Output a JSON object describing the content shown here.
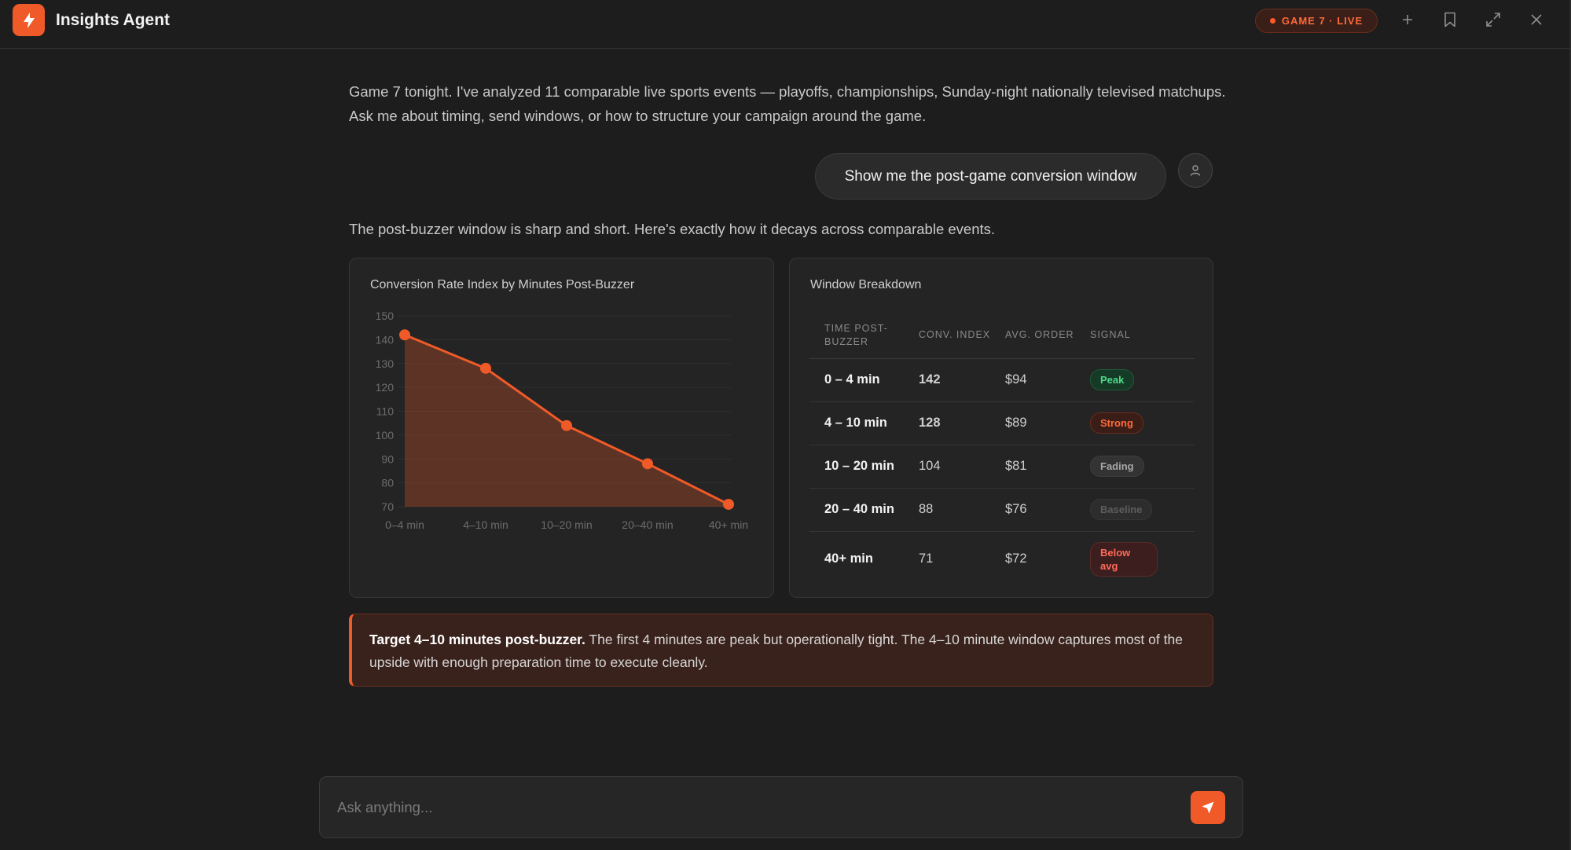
{
  "app": {
    "title": "Insights Agent",
    "logo_icon": "lightning-bolt-icon"
  },
  "header": {
    "live_badge": "GAME 7 · LIVE",
    "actions": [
      "plus-icon",
      "bookmark-icon",
      "expand-icon",
      "close-icon"
    ]
  },
  "messages": {
    "intro": "Game 7 tonight. I've analyzed 11 comparable live sports events — playoffs, championships, Sunday-night nationally televised matchups. Ask me about timing, send windows, or how to structure your campaign around the game.",
    "user_prompt": "Show me the post-game conversion window",
    "reply": "The post-buzzer window is sharp and short. Here's exactly how it decays across comparable events."
  },
  "chart_card": {
    "title": "Conversion Rate Index by Minutes Post-Buzzer"
  },
  "chart_data": {
    "type": "area",
    "title": "Conversion Rate Index by Minutes Post-Buzzer",
    "categories": [
      "0–4 min",
      "4–10 min",
      "10–20 min",
      "20–40 min",
      "40+ min"
    ],
    "values": [
      142,
      128,
      104,
      88,
      71
    ],
    "ylim": [
      70,
      150
    ],
    "yticks": [
      70,
      80,
      90,
      100,
      110,
      120,
      130,
      140,
      150
    ],
    "grid": true,
    "color": "#f05a28"
  },
  "table_card": {
    "title": "Window Breakdown",
    "headers": [
      "TIME POST-BUZZER",
      "CONV. INDEX",
      "AVG. ORDER",
      "SIGNAL"
    ],
    "rows": [
      {
        "time": "0 – 4 min",
        "index": "142",
        "order": "$94",
        "signal": "Peak"
      },
      {
        "time": "4 – 10 min",
        "index": "128",
        "order": "$89",
        "signal": "Strong"
      },
      {
        "time": "10 – 20 min",
        "index": "104",
        "order": "$81",
        "signal": "Fading"
      },
      {
        "time": "20 – 40 min",
        "index": "88",
        "order": "$76",
        "signal": "Baseline"
      },
      {
        "time": "40+ min",
        "index": "71",
        "order": "$72",
        "signal": "Below avg"
      }
    ]
  },
  "callout": {
    "bold": "Target 4–10 minutes post-buzzer.",
    "text": " The first 4 minutes are peak but operationally tight. The 4–10 minute window captures most of the upside with enough preparation time to execute cleanly."
  },
  "composer": {
    "placeholder": "Ask anything...",
    "send_icon": "send-icon"
  },
  "colors": {
    "accent": "#f05a28",
    "background": "#1d1d1d",
    "peak": "#4ed98a"
  }
}
